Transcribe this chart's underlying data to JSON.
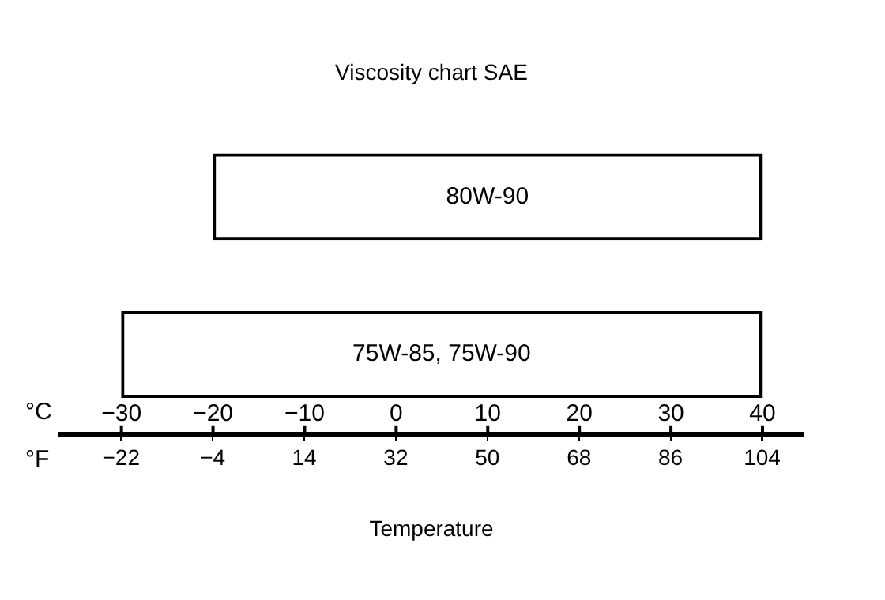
{
  "chart_data": {
    "type": "bar",
    "orientation": "horizontal",
    "title": "Viscosity chart SAE",
    "xlabel": "Temperature",
    "categories": [
      "80W-90",
      "75W-85, 75W-90"
    ],
    "base": [
      -4,
      -22
    ],
    "values": [
      108,
      126
    ],
    "color": "#000000",
    "xlim": [
      -34,
      112
    ],
    "xticks": [
      -22,
      -4,
      14,
      32,
      50,
      68,
      86,
      104
    ],
    "x2lim": [
      -36.7,
      44.4
    ],
    "x2ticks": [
      -30,
      -20,
      -10,
      0,
      10,
      20,
      30,
      40
    ],
    "annotations": [
      "°C",
      "°F"
    ],
    "tick_labels": "x",
    "grid": false,
    "legend": false
  }
}
